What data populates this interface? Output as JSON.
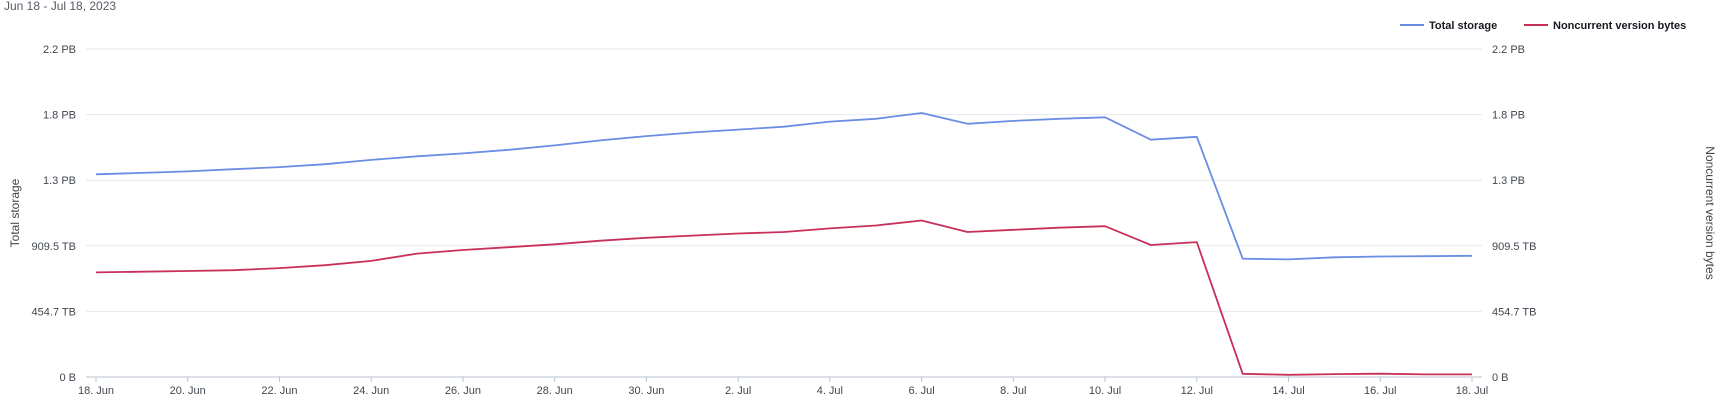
{
  "date_range": "Jun 18 - Jul 18, 2023",
  "colors": {
    "total_storage": "#6b8de3",
    "noncurrent": "#c8305a",
    "grid": "#e6e8ec",
    "axis": "#b8c1cf"
  },
  "chart_data": {
    "type": "line",
    "x": [
      "18. Jun",
      "19. Jun",
      "20. Jun",
      "21. Jun",
      "22. Jun",
      "23. Jun",
      "24. Jun",
      "25. Jun",
      "26. Jun",
      "27. Jun",
      "28. Jun",
      "29. Jun",
      "30. Jun",
      "1. Jul",
      "2. Jul",
      "3. Jul",
      "4. Jul",
      "5. Jul",
      "6. Jul",
      "7. Jul",
      "8. Jul",
      "9. Jul",
      "10. Jul",
      "11. Jul",
      "12. Jul",
      "13. Jul",
      "14. Jul",
      "15. Jul",
      "16. Jul",
      "17. Jul",
      "18. Jul"
    ],
    "x_tick_labels": [
      "18. Jun",
      "20. Jun",
      "22. Jun",
      "24. Jun",
      "26. Jun",
      "28. Jun",
      "30. Jun",
      "2. Jul",
      "4. Jul",
      "6. Jul",
      "8. Jul",
      "10. Jul",
      "12. Jul",
      "14. Jul",
      "16. Jul",
      "18. Jul"
    ],
    "series": [
      {
        "name": "Total storage",
        "axis": "left",
        "values_tb": [
          1405,
          1415,
          1425,
          1440,
          1455,
          1475,
          1505,
          1530,
          1550,
          1575,
          1605,
          1640,
          1670,
          1695,
          1715,
          1735,
          1770,
          1790,
          1830,
          1755,
          1775,
          1790,
          1800,
          1645,
          1665,
          820,
          815,
          830,
          835,
          837,
          840
        ]
      },
      {
        "name": "Noncurrent version bytes",
        "axis": "right",
        "values_tb": [
          725,
          730,
          735,
          740,
          755,
          775,
          805,
          855,
          880,
          900,
          920,
          945,
          965,
          980,
          995,
          1005,
          1030,
          1050,
          1085,
          1005,
          1020,
          1035,
          1045,
          915,
          935,
          22,
          15,
          20,
          23,
          18,
          18
        ]
      }
    ],
    "y_left": {
      "label": "Total storage",
      "ticks": [
        "0 B",
        "454.7 TB",
        "909.5 TB",
        "1.3 PB",
        "1.8 PB",
        "2.2 PB"
      ],
      "max_tb": 2273.5
    },
    "y_right": {
      "label": "Noncurrent version bytes",
      "ticks": [
        "0 B",
        "454.7 TB",
        "909.5 TB",
        "1.3 PB",
        "1.8 PB",
        "2.2 PB"
      ],
      "max_tb": 2273.5
    },
    "legend": {
      "position": "top-right",
      "items": [
        "Total storage",
        "Noncurrent version bytes"
      ]
    },
    "grid": true
  }
}
